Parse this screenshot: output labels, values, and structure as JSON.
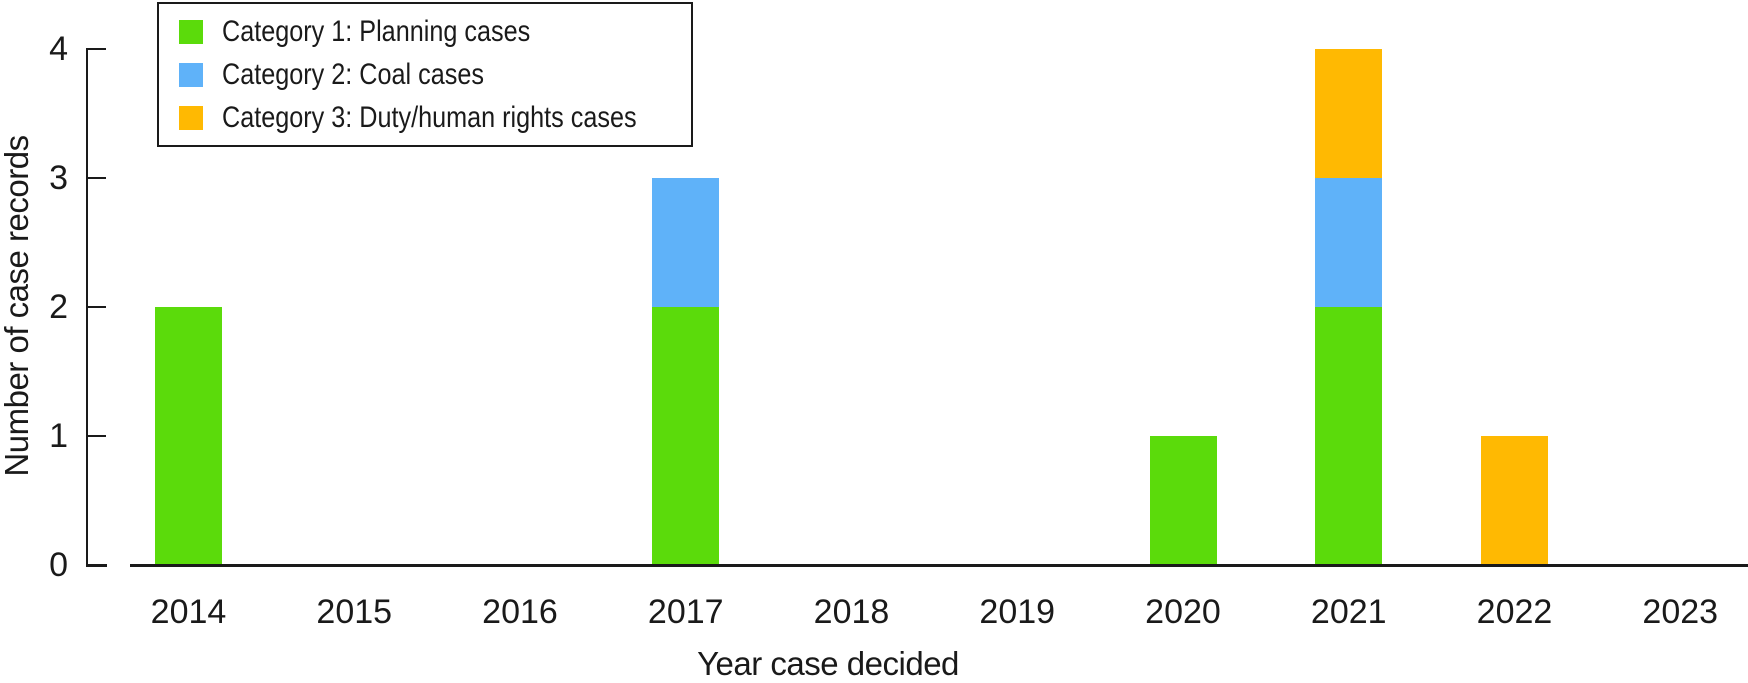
{
  "chart_data": {
    "type": "bar",
    "stacked": true,
    "title": "",
    "xlabel": "Year case decided",
    "ylabel": "Number of case records",
    "categories": [
      "2014",
      "2015",
      "2016",
      "2017",
      "2018",
      "2019",
      "2020",
      "2021",
      "2022",
      "2023"
    ],
    "series": [
      {
        "name": "Category 1: Planning cases",
        "color": "#5bdb0b",
        "values": [
          2,
          0,
          0,
          2,
          0,
          0,
          1,
          2,
          0,
          0
        ]
      },
      {
        "name": "Category 2: Coal cases",
        "color": "#5fb2f9",
        "values": [
          0,
          0,
          0,
          1,
          0,
          0,
          0,
          1,
          0,
          0
        ]
      },
      {
        "name": "Category 3: Duty/human rights cases",
        "color": "#ffb902",
        "values": [
          0,
          0,
          0,
          0,
          0,
          0,
          0,
          1,
          1,
          0
        ]
      }
    ],
    "yticks": [
      0,
      1,
      2,
      3,
      4
    ],
    "ylim": [
      0,
      4
    ],
    "grid": false,
    "legend_position": "top-left",
    "axis_color": "#1a1a1a"
  }
}
